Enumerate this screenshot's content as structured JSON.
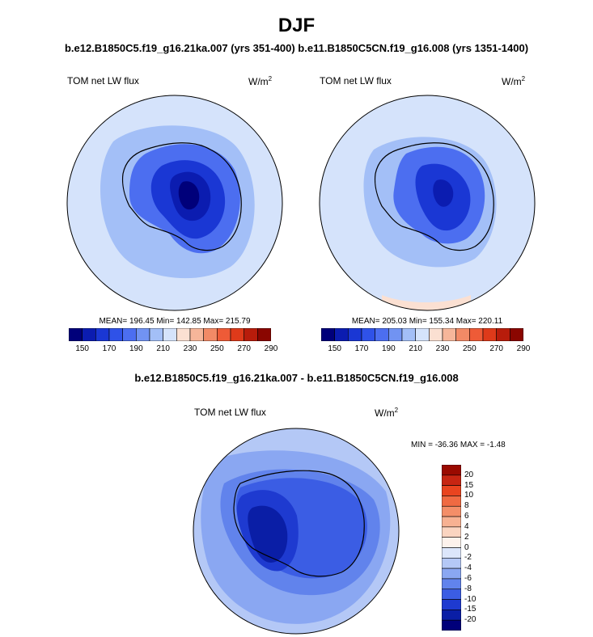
{
  "page": {
    "title": "DJF",
    "top_subtitle": "b.e12.B1850C5.f19_g16.21ka.007 (yrs 351-400) b.e11.B1850C5CN.f19_g16.008 (yrs 1351-1400)",
    "diff_subtitle": "b.e12.B1850C5.f19_g16.21ka.007 - b.e11.B1850C5CN.f19_g16.008"
  },
  "panels": [
    {
      "label": "TOM net LW flux",
      "units_base": "W/m",
      "units_exp": "2",
      "stats": "MEAN= 196.45  Min= 142.85  Max= 215.79"
    },
    {
      "label": "TOM net LW flux",
      "units_base": "W/m",
      "units_exp": "2",
      "stats": "MEAN= 205.03  Min= 155.34  Max= 220.11"
    }
  ],
  "diff_panel": {
    "label": "TOM net LW flux",
    "units_base": "W/m",
    "units_exp": "2",
    "minmax": "MIN = -36.36 MAX =  -1.48"
  },
  "colorbar_h": {
    "labels": [
      "150",
      "170",
      "190",
      "210",
      "230",
      "250",
      "270",
      "290"
    ],
    "colors": [
      "#00007a",
      "#0b1cb0",
      "#1a37d4",
      "#2f52e8",
      "#4c6ef0",
      "#7193f2",
      "#a3bff7",
      "#d5e3fb",
      "#fbe0d2",
      "#f6b69a",
      "#f28a66",
      "#ee5b37",
      "#de3a1a",
      "#b81c0b",
      "#8a0600"
    ]
  },
  "colorbar_v": {
    "labels": [
      "20",
      "15",
      "10",
      "8",
      "6",
      "4",
      "2",
      "0",
      "-2",
      "-4",
      "-6",
      "-8",
      "-10",
      "-15",
      "-20"
    ],
    "colors": [
      "#9a0a00",
      "#c72512",
      "#e9441f",
      "#f06a42",
      "#f48e68",
      "#f7b192",
      "#fad4c0",
      "#fdf2ec",
      "#dce6fb",
      "#b4c8f6",
      "#8aa7f2",
      "#6183ec",
      "#3b5de4",
      "#1e3ad0",
      "#0a1ea6",
      "#00007a"
    ]
  }
}
